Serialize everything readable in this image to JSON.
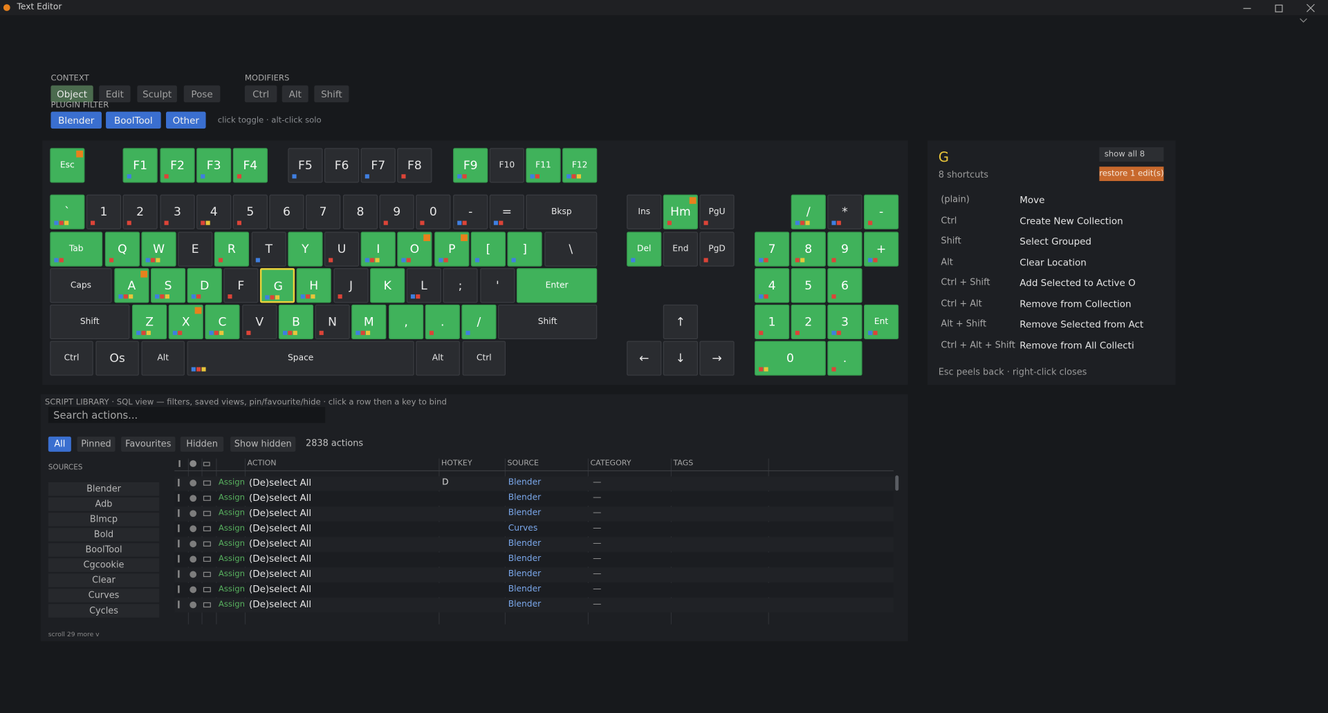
{
  "window": {
    "title": "Text Editor"
  },
  "context": {
    "label": "CONTEXT",
    "options": [
      "Object",
      "Edit",
      "Sculpt",
      "Pose"
    ],
    "active": "Object"
  },
  "modifiers": {
    "label": "MODIFIERS",
    "options": [
      "Ctrl",
      "Alt",
      "Shift"
    ]
  },
  "plugin_filter": {
    "label": "PLUGIN FILTER",
    "options": [
      "Blender",
      "BoolTool",
      "Other"
    ],
    "hint": "click toggle · alt-click solo"
  },
  "keyboard": {
    "keys": [
      {
        "label": "Esc",
        "on": true,
        "badge": true
      },
      {
        "label": "F1",
        "on": true,
        "dots": [
          "#3f7fe0"
        ]
      },
      {
        "label": "F2",
        "on": true,
        "dots": [
          "#dc4438"
        ]
      },
      {
        "label": "F3",
        "on": true,
        "dots": [
          "#3f7fe0"
        ]
      },
      {
        "label": "F4",
        "on": true,
        "dots": [
          "#dc4438"
        ]
      },
      {
        "label": "F5",
        "on": false,
        "dots": [
          "#3f7fe0"
        ]
      },
      {
        "label": "F6",
        "on": false
      },
      {
        "label": "F7",
        "on": false,
        "dots": [
          "#3f7fe0"
        ]
      },
      {
        "label": "F8",
        "on": false,
        "dots": [
          "#dc4438"
        ]
      },
      {
        "label": "F9",
        "on": true,
        "dots": [
          "#3f7fe0",
          "#dc4438"
        ]
      },
      {
        "label": "F10",
        "on": false
      },
      {
        "label": "F11",
        "on": true,
        "dots": [
          "#3f7fe0",
          "#dc4438"
        ]
      },
      {
        "label": "F12",
        "on": true,
        "dots": [
          "#3f7fe0",
          "#dc4438",
          "#e9c53a"
        ]
      },
      {
        "label": "`",
        "on": true,
        "dots": [
          "#3f7fe0",
          "#dc4438",
          "#e9c53a"
        ]
      },
      {
        "label": "1",
        "on": false,
        "dots": [
          "#dc4438"
        ]
      },
      {
        "label": "2",
        "on": false,
        "dots": [
          "#dc4438"
        ]
      },
      {
        "label": "3",
        "on": false,
        "dots": [
          "#dc4438"
        ]
      },
      {
        "label": "4",
        "on": false,
        "dots": [
          "#dc4438",
          "#e9c53a"
        ]
      },
      {
        "label": "5",
        "on": false,
        "dots": [
          "#dc4438"
        ]
      },
      {
        "label": "6",
        "on": false
      },
      {
        "label": "7",
        "on": false
      },
      {
        "label": "8",
        "on": false
      },
      {
        "label": "9",
        "on": false,
        "dots": [
          "#dc4438"
        ]
      },
      {
        "label": "0",
        "on": false,
        "dots": [
          "#dc4438"
        ]
      },
      {
        "label": "-",
        "on": false,
        "dots": [
          "#3f7fe0",
          "#dc4438"
        ]
      },
      {
        "label": "=",
        "on": false,
        "dots": [
          "#3f7fe0",
          "#dc4438"
        ]
      },
      {
        "label": "Bksp",
        "on": false
      },
      {
        "label": "Tab",
        "on": true,
        "dots": [
          "#3f7fe0",
          "#dc4438"
        ]
      },
      {
        "label": "Q",
        "on": true,
        "dots": [
          "#dc4438"
        ]
      },
      {
        "label": "W",
        "on": true,
        "dots": [
          "#3f7fe0",
          "#dc4438",
          "#e9c53a"
        ]
      },
      {
        "label": "E",
        "on": false
      },
      {
        "label": "R",
        "on": true,
        "dots": [
          "#dc4438"
        ]
      },
      {
        "label": "T",
        "on": false,
        "dots": [
          "#3f7fe0"
        ]
      },
      {
        "label": "Y",
        "on": true
      },
      {
        "label": "U",
        "on": false,
        "dots": [
          "#dc4438"
        ]
      },
      {
        "label": "I",
        "on": true,
        "dots": [
          "#3f7fe0",
          "#dc4438",
          "#e9c53a"
        ]
      },
      {
        "label": "O",
        "on": true,
        "badge": true,
        "dots": [
          "#3f7fe0",
          "#dc4438"
        ]
      },
      {
        "label": "P",
        "on": true,
        "badge": true,
        "dots": [
          "#3f7fe0",
          "#dc4438"
        ]
      },
      {
        "label": "[",
        "on": true,
        "dots": [
          "#3f7fe0"
        ]
      },
      {
        "label": "]",
        "on": true,
        "dots": [
          "#3f7fe0"
        ]
      },
      {
        "label": "\\",
        "on": false
      },
      {
        "label": "Caps",
        "on": false
      },
      {
        "label": "A",
        "on": true,
        "badge": true,
        "dots": [
          "#3f7fe0",
          "#dc4438",
          "#e9c53a"
        ]
      },
      {
        "label": "S",
        "on": true,
        "dots": [
          "#3f7fe0",
          "#dc4438",
          "#e9c53a"
        ]
      },
      {
        "label": "D",
        "on": true,
        "dots": [
          "#3f7fe0",
          "#dc4438"
        ]
      },
      {
        "label": "F",
        "on": false,
        "dots": [
          "#dc4438"
        ]
      },
      {
        "label": "G",
        "on": true,
        "selected": true,
        "dots": [
          "#3f7fe0",
          "#dc4438",
          "#e9c53a"
        ]
      },
      {
        "label": "H",
        "on": true,
        "dots": [
          "#3f7fe0",
          "#dc4438",
          "#e9c53a"
        ]
      },
      {
        "label": "J",
        "on": false,
        "dots": [
          "#dc4438"
        ]
      },
      {
        "label": "K",
        "on": true
      },
      {
        "label": "L",
        "on": false,
        "dots": [
          "#3f7fe0",
          "#dc4438"
        ]
      },
      {
        "label": ";",
        "on": false
      },
      {
        "label": "'",
        "on": false
      },
      {
        "label": "Enter",
        "on": true
      },
      {
        "label": "Shift",
        "on": false
      },
      {
        "label": "Z",
        "on": true,
        "dots": [
          "#3f7fe0",
          "#dc4438",
          "#e9c53a"
        ]
      },
      {
        "label": "X",
        "on": true,
        "badge": true,
        "dots": [
          "#3f7fe0",
          "#dc4438"
        ]
      },
      {
        "label": "C",
        "on": true,
        "dots": [
          "#3f7fe0",
          "#dc4438",
          "#e9c53a"
        ]
      },
      {
        "label": "V",
        "on": false,
        "dots": [
          "#dc4438"
        ]
      },
      {
        "label": "B",
        "on": true,
        "dots": [
          "#3f7fe0",
          "#dc4438",
          "#e9c53a"
        ]
      },
      {
        "label": "N",
        "on": false,
        "dots": [
          "#dc4438"
        ]
      },
      {
        "label": "M",
        "on": true,
        "dots": [
          "#3f7fe0",
          "#dc4438",
          "#e9c53a"
        ]
      },
      {
        "label": ",",
        "on": true
      },
      {
        "label": ".",
        "on": true,
        "dots": [
          "#dc4438"
        ]
      },
      {
        "label": "/",
        "on": true,
        "dots": [
          "#3f7fe0"
        ]
      },
      {
        "label": "Shift",
        "on": false
      },
      {
        "label": "Ctrl",
        "on": false
      },
      {
        "label": "Os",
        "on": false
      },
      {
        "label": "Alt",
        "on": false
      },
      {
        "label": "Space",
        "on": false,
        "dots": [
          "#3f7fe0",
          "#dc4438",
          "#e9c53a"
        ]
      },
      {
        "label": "Alt",
        "on": false
      },
      {
        "label": "Ctrl",
        "on": false
      },
      {
        "label": "Ins",
        "on": false
      },
      {
        "label": "Hm",
        "on": true,
        "badge": true,
        "dots": [
          "#dc4438"
        ]
      },
      {
        "label": "PgU",
        "on": false,
        "dots": [
          "#dc4438"
        ]
      },
      {
        "label": "Del",
        "on": true,
        "dots": [
          "#3f7fe0"
        ]
      },
      {
        "label": "End",
        "on": false
      },
      {
        "label": "PgD",
        "on": false,
        "dots": [
          "#dc4438"
        ]
      },
      {
        "label": "↑",
        "on": false
      },
      {
        "label": "←",
        "on": false
      },
      {
        "label": "↓",
        "on": false
      },
      {
        "label": "→",
        "on": false
      },
      {
        "label": "/",
        "on": true,
        "dots": [
          "#3f7fe0",
          "#dc4438",
          "#e9c53a"
        ]
      },
      {
        "label": "*",
        "on": false,
        "dots": [
          "#3f7fe0",
          "#dc4438"
        ]
      },
      {
        "label": "-",
        "on": true,
        "dots": [
          "#dc4438"
        ]
      },
      {
        "label": "7",
        "on": true,
        "dots": [
          "#3f7fe0",
          "#dc4438"
        ]
      },
      {
        "label": "8",
        "on": true,
        "dots": [
          "#dc4438",
          "#e9c53a"
        ]
      },
      {
        "label": "9",
        "on": true,
        "dots": [
          "#dc4438"
        ]
      },
      {
        "label": "+",
        "on": true,
        "dots": [
          "#3f7fe0",
          "#dc4438"
        ]
      },
      {
        "label": "4",
        "on": true,
        "dots": [
          "#3f7fe0",
          "#dc4438"
        ]
      },
      {
        "label": "5",
        "on": true
      },
      {
        "label": "6",
        "on": true,
        "dots": [
          "#dc4438"
        ]
      },
      {
        "label": "1",
        "on": true,
        "dots": [
          "#dc4438"
        ]
      },
      {
        "label": "2",
        "on": true,
        "dots": [
          "#dc4438"
        ]
      },
      {
        "label": "3",
        "on": true,
        "dots": [
          "#3f7fe0",
          "#dc4438"
        ]
      },
      {
        "label": "Ent",
        "on": true,
        "dots": [
          "#3f7fe0",
          "#dc4438"
        ]
      },
      {
        "label": "0",
        "on": true,
        "dots": [
          "#dc4438",
          "#e9c53a"
        ]
      },
      {
        "label": ".",
        "on": true,
        "dots": [
          "#dc4438"
        ]
      }
    ]
  },
  "detail": {
    "key": "G",
    "count": "8 shortcuts",
    "show_all": "show all 8",
    "restore": "restore 1 edit(s)",
    "shortcuts": [
      {
        "mod": "(plain)",
        "action": "Move"
      },
      {
        "mod": "Ctrl",
        "action": "Create New Collection"
      },
      {
        "mod": "Shift",
        "action": "Select Grouped"
      },
      {
        "mod": "Alt",
        "action": "Clear Location"
      },
      {
        "mod": "Ctrl + Shift",
        "action": "Add Selected to Active O"
      },
      {
        "mod": "Ctrl + Alt",
        "action": "Remove from Collection"
      },
      {
        "mod": "Alt + Shift",
        "action": "Remove Selected from Act"
      },
      {
        "mod": "Ctrl + Alt + Shift",
        "action": "Remove from All Collecti"
      }
    ],
    "footer": "Esc peels back · right-click closes"
  },
  "library": {
    "header": "SCRIPT LIBRARY · SQL view — filters, saved views, pin/favourite/hide · click a row then a key to bind",
    "search_placeholder": "Search actions...",
    "tabs": [
      "All",
      "Pinned",
      "Favourites",
      "Hidden",
      "Show hidden"
    ],
    "active_tab": "All",
    "count": "2838 actions",
    "sources_label": "SOURCES",
    "sources": [
      "Blender",
      "Adb",
      "Blmcp",
      "Bold",
      "BoolTool",
      "Cgcookie",
      "Clear",
      "Curves",
      "Cycles"
    ],
    "scroll_hint": "scroll 29 more v",
    "columns": [
      "ACTION",
      "HOTKEY",
      "SOURCE",
      "CATEGORY",
      "TAGS"
    ],
    "rows": [
      {
        "button": "Assign",
        "action": "(De)select All",
        "hotkey": "D",
        "source": "Blender",
        "category": "—"
      },
      {
        "button": "Assign",
        "action": "(De)select All",
        "hotkey": null,
        "source": "Blender",
        "category": "—"
      },
      {
        "button": "Assign",
        "action": "(De)select All",
        "hotkey": null,
        "source": "Blender",
        "category": "—"
      },
      {
        "button": "Assign",
        "action": "(De)select All",
        "hotkey": null,
        "source": "Curves",
        "category": "—"
      },
      {
        "button": "Assign",
        "action": "(De)select All",
        "hotkey": null,
        "source": "Blender",
        "category": "—"
      },
      {
        "button": "Assign",
        "action": "(De)select All",
        "hotkey": null,
        "source": "Blender",
        "category": "—"
      },
      {
        "button": "Assign",
        "action": "(De)select All",
        "hotkey": null,
        "source": "Blender",
        "category": "—"
      },
      {
        "button": "Assign",
        "action": "(De)select All",
        "hotkey": null,
        "source": "Blender",
        "category": "—"
      },
      {
        "button": "Assign",
        "action": "(De)select All",
        "hotkey": null,
        "source": "Blender",
        "category": "—"
      }
    ]
  }
}
